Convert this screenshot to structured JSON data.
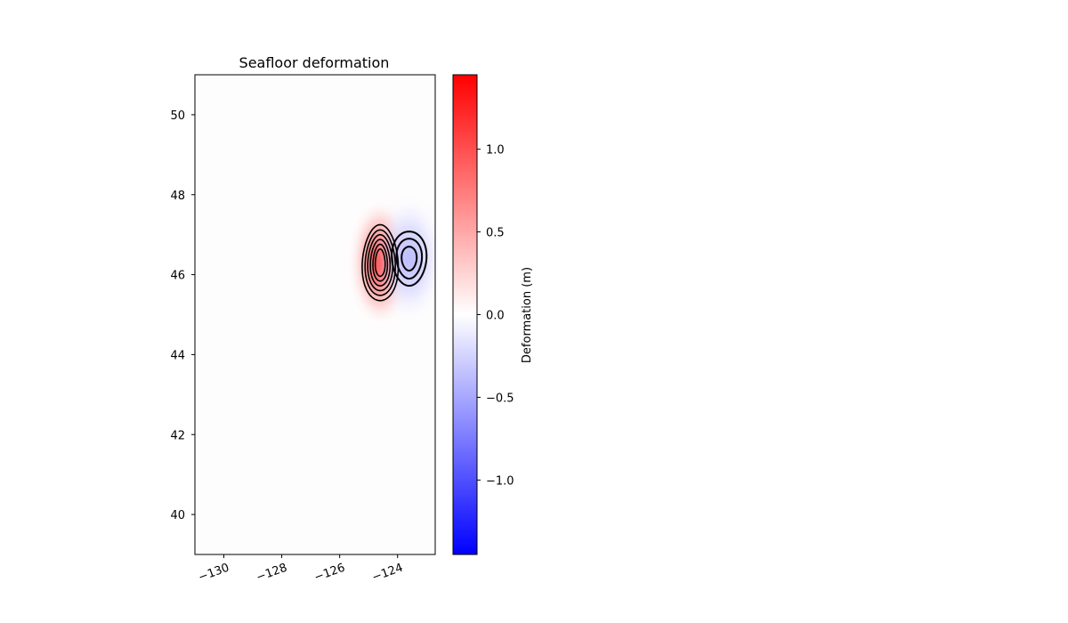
{
  "chart_data": {
    "type": "heatmap",
    "title": "Seafloor deformation",
    "xlabel": "",
    "ylabel": "",
    "xlim": [
      -131,
      -122.7
    ],
    "ylim": [
      39,
      51
    ],
    "xticks": [
      -130,
      -128,
      -126,
      -124
    ],
    "xtick_labels": [
      "−130",
      "−128",
      "−126",
      "−124"
    ],
    "yticks": [
      40,
      42,
      44,
      46,
      48,
      50
    ],
    "ytick_labels": [
      "40",
      "42",
      "44",
      "46",
      "48",
      "50"
    ],
    "grid": false,
    "colormap": "bwr",
    "colorbar": {
      "label": "Deformation (m)",
      "vmin": -1.45,
      "vmax": 1.45,
      "ticks": [
        -1.0,
        -0.5,
        0.0,
        0.5,
        1.0
      ],
      "tick_labels": [
        "−1.0",
        "−0.5",
        "0.0",
        "0.5",
        "1.0"
      ],
      "colors": {
        "low": "#0000ff",
        "mid": "#ffffff",
        "high": "#ff0000"
      }
    },
    "features": [
      {
        "name": "uplift",
        "sign": "positive",
        "center": [
          -124.6,
          46.3
        ],
        "peak": 1.45,
        "spread_lon": 0.35,
        "spread_lat": 0.6
      },
      {
        "name": "subsidence",
        "sign": "negative",
        "center": [
          -123.6,
          46.4
        ],
        "peak": -0.55,
        "spread_lon": 0.38,
        "spread_lat": 0.6
      }
    ],
    "contours": [
      {
        "sign": "positive",
        "center": [
          -124.6,
          46.3
        ],
        "levels": [
          {
            "half_lon": 0.62,
            "half_lat": 0.95
          },
          {
            "half_lon": 0.52,
            "half_lat": 0.82
          },
          {
            "half_lon": 0.43,
            "half_lat": 0.7
          },
          {
            "half_lon": 0.34,
            "half_lat": 0.58
          },
          {
            "half_lon": 0.25,
            "half_lat": 0.46
          },
          {
            "half_lon": 0.17,
            "half_lat": 0.34
          }
        ]
      },
      {
        "sign": "negative",
        "center": [
          -123.6,
          46.4
        ],
        "levels": [
          {
            "half_lon": 0.6,
            "half_lat": 0.68
          },
          {
            "half_lon": 0.44,
            "half_lat": 0.5
          },
          {
            "half_lon": 0.26,
            "half_lat": 0.3
          }
        ]
      }
    ]
  }
}
